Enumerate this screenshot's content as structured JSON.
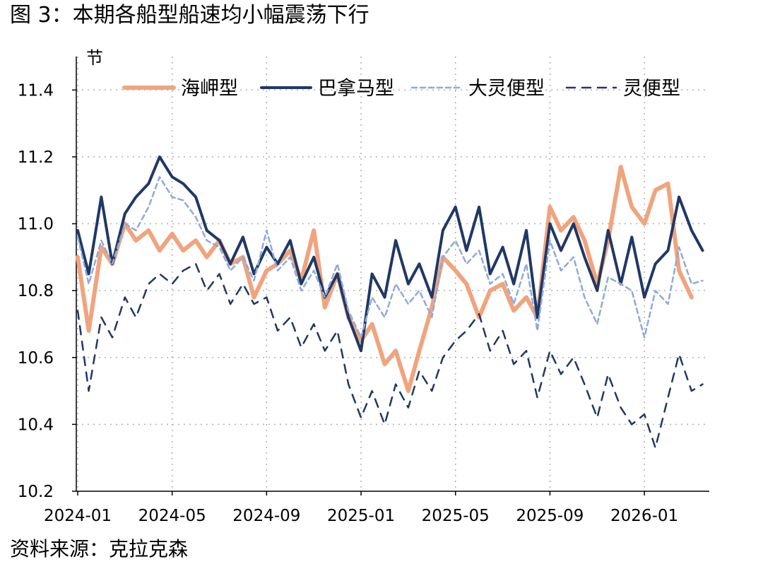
{
  "figure": {
    "title": "图 3：本期各船型船速均小幅震荡下行",
    "source": "资料来源：克拉克森"
  },
  "chart_data": {
    "type": "line",
    "title": "图 3：本期各船型船速均小幅震荡下行",
    "ylabel": "节",
    "xlabel": "",
    "ylim": [
      10.2,
      11.5
    ],
    "y_ticks": [
      "10.2",
      "10.4",
      "10.6",
      "10.8",
      "11.0",
      "11.2",
      "11.4"
    ],
    "x_ticks": [
      "2024-01",
      "2024-05",
      "2024-09",
      "2025-01",
      "2025-05",
      "2025-09",
      "2026-01"
    ],
    "x_start": "2024-01",
    "x_end": "2026-03",
    "grid": true,
    "legend_position": "top",
    "series": [
      {
        "name": "海岬型",
        "color": "#F0A47E",
        "style": "solid-thick",
        "points": [
          [
            "2024-01",
            10.9
          ],
          [
            "2024-01-15",
            10.68
          ],
          [
            "2024-02",
            10.93
          ],
          [
            "2024-02-15",
            10.88
          ],
          [
            "2024-03",
            11.0
          ],
          [
            "2024-03-15",
            10.95
          ],
          [
            "2024-04",
            10.98
          ],
          [
            "2024-04-15",
            10.92
          ],
          [
            "2024-05",
            10.97
          ],
          [
            "2024-05-15",
            10.92
          ],
          [
            "2024-06",
            10.95
          ],
          [
            "2024-06-15",
            10.9
          ],
          [
            "2024-07",
            10.95
          ],
          [
            "2024-07-15",
            10.88
          ],
          [
            "2024-08",
            10.9
          ],
          [
            "2024-08-15",
            10.78
          ],
          [
            "2024-09",
            10.86
          ],
          [
            "2024-09-15",
            10.88
          ],
          [
            "2024-10",
            10.92
          ],
          [
            "2024-10-15",
            10.83
          ],
          [
            "2024-11",
            10.98
          ],
          [
            "2024-11-15",
            10.75
          ],
          [
            "2024-12",
            10.85
          ],
          [
            "2024-12-15",
            10.72
          ],
          [
            "2025-01",
            10.65
          ],
          [
            "2025-01-15",
            10.7
          ],
          [
            "2025-02",
            10.58
          ],
          [
            "2025-02-15",
            10.62
          ],
          [
            "2025-03",
            10.5
          ],
          [
            "2025-03-15",
            10.62
          ],
          [
            "2025-04",
            10.75
          ],
          [
            "2025-04-15",
            10.9
          ],
          [
            "2025-05",
            10.86
          ],
          [
            "2025-05-15",
            10.82
          ],
          [
            "2025-06",
            10.72
          ],
          [
            "2025-06-15",
            10.8
          ],
          [
            "2025-07",
            10.82
          ],
          [
            "2025-07-15",
            10.74
          ],
          [
            "2025-08",
            10.78
          ],
          [
            "2025-08-15",
            10.72
          ],
          [
            "2025-09",
            11.05
          ],
          [
            "2025-09-15",
            10.98
          ],
          [
            "2025-10",
            11.02
          ],
          [
            "2025-10-15",
            10.95
          ],
          [
            "2025-11",
            10.82
          ],
          [
            "2025-11-15",
            10.95
          ],
          [
            "2025-12",
            11.17
          ],
          [
            "2025-12-15",
            11.05
          ],
          [
            "2026-01",
            11.0
          ],
          [
            "2026-01-15",
            11.1
          ],
          [
            "2026-02",
            11.12
          ],
          [
            "2026-02-15",
            10.86
          ],
          [
            "2026-03",
            10.78
          ]
        ]
      },
      {
        "name": "巴拿马型",
        "color": "#203864",
        "style": "solid",
        "points": [
          [
            "2024-01",
            10.98
          ],
          [
            "2024-01-15",
            10.85
          ],
          [
            "2024-02",
            11.08
          ],
          [
            "2024-02-15",
            10.88
          ],
          [
            "2024-03",
            11.03
          ],
          [
            "2024-03-15",
            11.08
          ],
          [
            "2024-04",
            11.12
          ],
          [
            "2024-04-15",
            11.2
          ],
          [
            "2024-05",
            11.14
          ],
          [
            "2024-05-15",
            11.12
          ],
          [
            "2024-06",
            11.08
          ],
          [
            "2024-06-15",
            10.98
          ],
          [
            "2024-07",
            10.95
          ],
          [
            "2024-07-15",
            10.88
          ],
          [
            "2024-08",
            10.96
          ],
          [
            "2024-08-15",
            10.85
          ],
          [
            "2024-09",
            10.93
          ],
          [
            "2024-09-15",
            10.88
          ],
          [
            "2024-10",
            10.95
          ],
          [
            "2024-10-15",
            10.82
          ],
          [
            "2024-11",
            10.9
          ],
          [
            "2024-11-15",
            10.78
          ],
          [
            "2024-12",
            10.85
          ],
          [
            "2024-12-15",
            10.72
          ],
          [
            "2025-01",
            10.62
          ],
          [
            "2025-01-15",
            10.85
          ],
          [
            "2025-02",
            10.78
          ],
          [
            "2025-02-15",
            10.95
          ],
          [
            "2025-03",
            10.82
          ],
          [
            "2025-03-15",
            10.88
          ],
          [
            "2025-04",
            10.78
          ],
          [
            "2025-04-15",
            10.98
          ],
          [
            "2025-05",
            11.05
          ],
          [
            "2025-05-15",
            10.92
          ],
          [
            "2025-06",
            11.05
          ],
          [
            "2025-06-15",
            10.85
          ],
          [
            "2025-07",
            10.93
          ],
          [
            "2025-07-15",
            10.82
          ],
          [
            "2025-08",
            10.98
          ],
          [
            "2025-08-15",
            10.72
          ],
          [
            "2025-09",
            11.0
          ],
          [
            "2025-09-15",
            10.92
          ],
          [
            "2025-10",
            11.0
          ],
          [
            "2025-10-15",
            10.9
          ],
          [
            "2025-11",
            10.8
          ],
          [
            "2025-11-15",
            10.98
          ],
          [
            "2025-12",
            10.82
          ],
          [
            "2025-12-15",
            10.96
          ],
          [
            "2026-01",
            10.78
          ],
          [
            "2026-01-15",
            10.88
          ],
          [
            "2026-02",
            10.92
          ],
          [
            "2026-02-15",
            11.08
          ],
          [
            "2026-03",
            10.98
          ],
          [
            "2026-03-15",
            10.92
          ]
        ]
      },
      {
        "name": "大灵便型",
        "color": "#8EAADB",
        "style": "dashed",
        "points": [
          [
            "2024-01",
            10.96
          ],
          [
            "2024-01-15",
            10.82
          ],
          [
            "2024-02",
            10.95
          ],
          [
            "2024-02-15",
            10.88
          ],
          [
            "2024-03",
            11.0
          ],
          [
            "2024-03-15",
            10.98
          ],
          [
            "2024-04",
            11.05
          ],
          [
            "2024-04-15",
            11.14
          ],
          [
            "2024-05",
            11.08
          ],
          [
            "2024-05-15",
            11.07
          ],
          [
            "2024-06",
            11.02
          ],
          [
            "2024-06-15",
            10.95
          ],
          [
            "2024-07",
            10.93
          ],
          [
            "2024-07-15",
            10.86
          ],
          [
            "2024-08",
            10.9
          ],
          [
            "2024-08-15",
            10.83
          ],
          [
            "2024-09",
            10.98
          ],
          [
            "2024-09-15",
            10.86
          ],
          [
            "2024-10",
            10.9
          ],
          [
            "2024-10-15",
            10.8
          ],
          [
            "2024-11",
            10.86
          ],
          [
            "2024-11-15",
            10.78
          ],
          [
            "2024-12",
            10.88
          ],
          [
            "2024-12-15",
            10.74
          ],
          [
            "2025-01",
            10.66
          ],
          [
            "2025-01-15",
            10.78
          ],
          [
            "2025-02",
            10.72
          ],
          [
            "2025-02-15",
            10.82
          ],
          [
            "2025-03",
            10.76
          ],
          [
            "2025-03-15",
            10.8
          ],
          [
            "2025-04",
            10.72
          ],
          [
            "2025-04-15",
            10.9
          ],
          [
            "2025-05",
            10.95
          ],
          [
            "2025-05-15",
            10.88
          ],
          [
            "2025-06",
            10.92
          ],
          [
            "2025-06-15",
            10.82
          ],
          [
            "2025-07",
            10.85
          ],
          [
            "2025-07-15",
            10.76
          ],
          [
            "2025-08",
            10.88
          ],
          [
            "2025-08-15",
            10.68
          ],
          [
            "2025-09",
            10.95
          ],
          [
            "2025-09-15",
            10.86
          ],
          [
            "2025-10",
            10.9
          ],
          [
            "2025-10-15",
            10.78
          ],
          [
            "2025-11",
            10.7
          ],
          [
            "2025-11-15",
            10.84
          ],
          [
            "2025-12",
            10.82
          ],
          [
            "2025-12-15",
            10.8
          ],
          [
            "2026-01",
            10.66
          ],
          [
            "2026-01-15",
            10.8
          ],
          [
            "2026-02",
            10.76
          ],
          [
            "2026-02-15",
            10.93
          ],
          [
            "2026-03",
            10.82
          ],
          [
            "2026-03-15",
            10.83
          ]
        ]
      },
      {
        "name": "灵便型",
        "color": "#203864",
        "style": "dashed",
        "points": [
          [
            "2024-01",
            10.74
          ],
          [
            "2024-01-15",
            10.5
          ],
          [
            "2024-02",
            10.72
          ],
          [
            "2024-02-15",
            10.66
          ],
          [
            "2024-03",
            10.78
          ],
          [
            "2024-03-15",
            10.72
          ],
          [
            "2024-04",
            10.82
          ],
          [
            "2024-04-15",
            10.85
          ],
          [
            "2024-05",
            10.82
          ],
          [
            "2024-05-15",
            10.86
          ],
          [
            "2024-06",
            10.88
          ],
          [
            "2024-06-15",
            10.8
          ],
          [
            "2024-07",
            10.85
          ],
          [
            "2024-07-15",
            10.76
          ],
          [
            "2024-08",
            10.82
          ],
          [
            "2024-08-15",
            10.76
          ],
          [
            "2024-09",
            10.78
          ],
          [
            "2024-09-15",
            10.68
          ],
          [
            "2024-10",
            10.72
          ],
          [
            "2024-10-15",
            10.63
          ],
          [
            "2024-11",
            10.7
          ],
          [
            "2024-11-15",
            10.62
          ],
          [
            "2024-12",
            10.68
          ],
          [
            "2024-12-15",
            10.52
          ],
          [
            "2025-01",
            10.42
          ],
          [
            "2025-01-15",
            10.5
          ],
          [
            "2025-02",
            10.4
          ],
          [
            "2025-02-15",
            10.52
          ],
          [
            "2025-03",
            10.45
          ],
          [
            "2025-03-15",
            10.56
          ],
          [
            "2025-04",
            10.5
          ],
          [
            "2025-04-15",
            10.6
          ],
          [
            "2025-05",
            10.65
          ],
          [
            "2025-05-15",
            10.68
          ],
          [
            "2025-06",
            10.73
          ],
          [
            "2025-06-15",
            10.62
          ],
          [
            "2025-07",
            10.68
          ],
          [
            "2025-07-15",
            10.58
          ],
          [
            "2025-08",
            10.62
          ],
          [
            "2025-08-15",
            10.48
          ],
          [
            "2025-09",
            10.62
          ],
          [
            "2025-09-15",
            10.55
          ],
          [
            "2025-10",
            10.6
          ],
          [
            "2025-10-15",
            10.52
          ],
          [
            "2025-11",
            10.42
          ],
          [
            "2025-11-15",
            10.55
          ],
          [
            "2025-12",
            10.45
          ],
          [
            "2025-12-15",
            10.4
          ],
          [
            "2026-01",
            10.43
          ],
          [
            "2026-01-15",
            10.33
          ],
          [
            "2026-02",
            10.48
          ],
          [
            "2026-02-15",
            10.61
          ],
          [
            "2026-03",
            10.5
          ],
          [
            "2026-03-15",
            10.52
          ]
        ]
      }
    ]
  }
}
